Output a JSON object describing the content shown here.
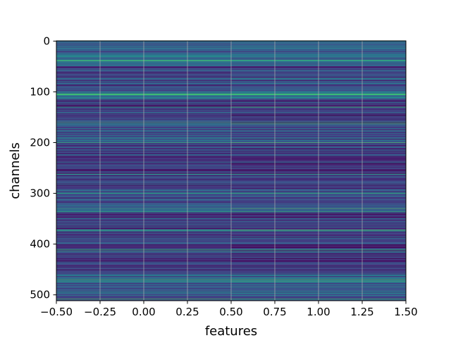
{
  "chart_data": {
    "type": "heatmap",
    "title": "",
    "xlabel": "features",
    "ylabel": "channels",
    "xlim": [
      -0.5,
      1.5
    ],
    "ylim": [
      511.5,
      -0.5
    ],
    "grid": true,
    "columns": 2,
    "rows": 512,
    "colormap": [
      "#440154",
      "#472d7b",
      "#3b528b",
      "#2c728e",
      "#21918c",
      "#28ae80",
      "#5ec962",
      "#addc30",
      "#fde725"
    ],
    "row_profile_x0": [
      {
        "from": 0,
        "to": 10,
        "level": 0.25
      },
      {
        "from": 10,
        "to": 30,
        "level": 0.3
      },
      {
        "from": 30,
        "to": 50,
        "level": 0.35
      },
      {
        "from": 50,
        "to": 100,
        "level": 0.22
      },
      {
        "from": 100,
        "to": 115,
        "level": 0.4
      },
      {
        "from": 115,
        "to": 160,
        "level": 0.2
      },
      {
        "from": 160,
        "to": 200,
        "level": 0.25
      },
      {
        "from": 200,
        "to": 280,
        "level": 0.18
      },
      {
        "from": 280,
        "to": 340,
        "level": 0.24
      },
      {
        "from": 340,
        "to": 420,
        "level": 0.2
      },
      {
        "from": 420,
        "to": 460,
        "level": 0.15
      },
      {
        "from": 460,
        "to": 512,
        "level": 0.28
      }
    ],
    "row_profile_x1": [
      {
        "from": 0,
        "to": 10,
        "level": 0.28
      },
      {
        "from": 10,
        "to": 30,
        "level": 0.3
      },
      {
        "from": 30,
        "to": 50,
        "level": 0.33
      },
      {
        "from": 50,
        "to": 100,
        "level": 0.24
      },
      {
        "from": 100,
        "to": 115,
        "level": 0.42
      },
      {
        "from": 115,
        "to": 160,
        "level": 0.18
      },
      {
        "from": 160,
        "to": 200,
        "level": 0.22
      },
      {
        "from": 200,
        "to": 280,
        "level": 0.16
      },
      {
        "from": 280,
        "to": 340,
        "level": 0.22
      },
      {
        "from": 340,
        "to": 420,
        "level": 0.18
      },
      {
        "from": 420,
        "to": 460,
        "level": 0.14
      },
      {
        "from": 460,
        "to": 512,
        "level": 0.3
      }
    ],
    "bright_rows": [
      38,
      39,
      104,
      105,
      106,
      130,
      160,
      163,
      200,
      262,
      300,
      330,
      336,
      372,
      374,
      411,
      414,
      470,
      473,
      508
    ],
    "x_ticks": [
      -0.5,
      -0.25,
      0.0,
      0.25,
      0.5,
      0.75,
      1.0,
      1.25,
      1.5
    ],
    "x_tick_labels": [
      "−0.50",
      "−0.25",
      "0.00",
      "0.25",
      "0.50",
      "0.75",
      "1.00",
      "1.25",
      "1.50"
    ],
    "y_ticks": [
      0,
      100,
      200,
      300,
      400,
      500
    ],
    "y_tick_labels": [
      "0",
      "100",
      "200",
      "300",
      "400",
      "500"
    ]
  }
}
